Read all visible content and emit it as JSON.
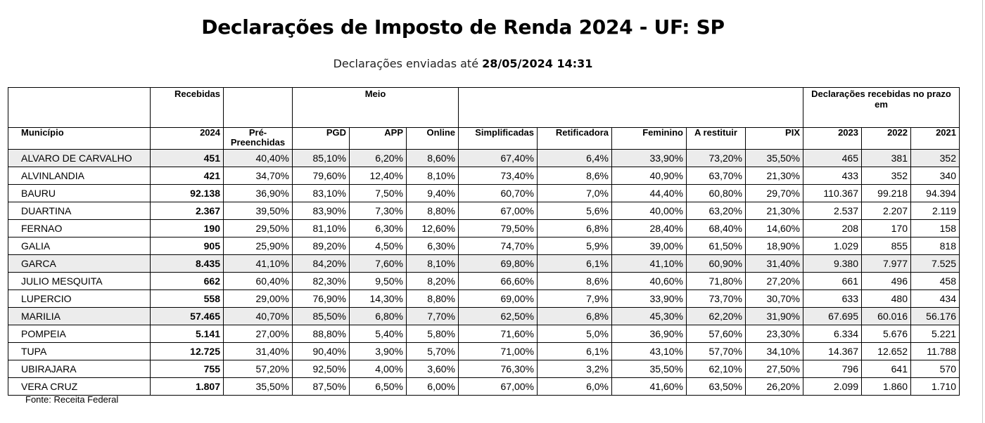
{
  "title": "Declarações de Imposto de Renda 2024 - UF: SP",
  "subtitle": {
    "prefix": "Declarações enviadas até",
    "datetime": "28/05/2024 14:31"
  },
  "group_headers": {
    "recebidas": "Recebidas",
    "meio": "Meio",
    "prazo": "Declarações recebidas no prazo em"
  },
  "columns": [
    "Município",
    "2024",
    "Pré-Preenchidas",
    "PGD",
    "APP",
    "Online",
    "Simplificadas",
    "Retificadora",
    "Feminino",
    "A restituir",
    "PIX",
    "2023",
    "2022",
    "2021"
  ],
  "rows": [
    [
      "ALVARO DE CARVALHO",
      "451",
      "40,40%",
      "85,10%",
      "6,20%",
      "8,60%",
      "67,40%",
      "6,4%",
      "33,90%",
      "73,20%",
      "35,50%",
      "465",
      "381",
      "352"
    ],
    [
      "ALVINLANDIA",
      "421",
      "34,70%",
      "79,60%",
      "12,40%",
      "8,10%",
      "73,40%",
      "8,6%",
      "40,90%",
      "63,70%",
      "21,30%",
      "433",
      "352",
      "340"
    ],
    [
      "BAURU",
      "92.138",
      "36,90%",
      "83,10%",
      "7,50%",
      "9,40%",
      "60,70%",
      "7,0%",
      "44,40%",
      "60,80%",
      "29,70%",
      "110.367",
      "99.218",
      "94.394"
    ],
    [
      "DUARTINA",
      "2.367",
      "39,50%",
      "83,90%",
      "7,30%",
      "8,80%",
      "67,00%",
      "5,6%",
      "40,00%",
      "63,20%",
      "21,30%",
      "2.537",
      "2.207",
      "2.119"
    ],
    [
      "FERNAO",
      "190",
      "29,50%",
      "81,10%",
      "6,30%",
      "12,60%",
      "79,50%",
      "6,8%",
      "28,40%",
      "68,40%",
      "14,60%",
      "208",
      "170",
      "158"
    ],
    [
      "GALIA",
      "905",
      "25,90%",
      "89,20%",
      "4,50%",
      "6,30%",
      "74,70%",
      "5,9%",
      "39,00%",
      "61,50%",
      "18,90%",
      "1.029",
      "855",
      "818"
    ],
    [
      "GARCA",
      "8.435",
      "41,10%",
      "84,20%",
      "7,60%",
      "8,10%",
      "69,80%",
      "6,1%",
      "41,10%",
      "60,90%",
      "31,40%",
      "9.380",
      "7.977",
      "7.525"
    ],
    [
      "JULIO MESQUITA",
      "662",
      "60,40%",
      "82,30%",
      "9,50%",
      "8,20%",
      "66,60%",
      "8,6%",
      "40,60%",
      "71,80%",
      "27,20%",
      "661",
      "496",
      "458"
    ],
    [
      "LUPERCIO",
      "558",
      "29,00%",
      "76,90%",
      "14,30%",
      "8,80%",
      "69,00%",
      "7,9%",
      "33,90%",
      "73,70%",
      "30,70%",
      "633",
      "480",
      "434"
    ],
    [
      "MARILIA",
      "57.465",
      "40,70%",
      "85,50%",
      "6,80%",
      "7,70%",
      "62,50%",
      "6,8%",
      "45,30%",
      "62,20%",
      "31,90%",
      "67.695",
      "60.016",
      "56.176"
    ],
    [
      "POMPEIA",
      "5.141",
      "27,00%",
      "88,80%",
      "5,40%",
      "5,80%",
      "71,60%",
      "5,0%",
      "36,90%",
      "57,60%",
      "23,30%",
      "6.334",
      "5.676",
      "5.221"
    ],
    [
      "TUPA",
      "12.725",
      "31,40%",
      "90,40%",
      "3,90%",
      "5,70%",
      "71,00%",
      "6,1%",
      "43,10%",
      "57,70%",
      "34,10%",
      "14.367",
      "12.652",
      "11.788"
    ],
    [
      "UBIRAJARA",
      "755",
      "57,20%",
      "92,50%",
      "4,00%",
      "3,60%",
      "76,30%",
      "3,2%",
      "35,50%",
      "62,10%",
      "27,50%",
      "796",
      "641",
      "570"
    ],
    [
      "VERA CRUZ",
      "1.807",
      "35,50%",
      "87,50%",
      "6,50%",
      "6,00%",
      "67,00%",
      "6,0%",
      "41,60%",
      "63,50%",
      "26,20%",
      "2.099",
      "1.860",
      "1.710"
    ]
  ],
  "shaded_rows": [
    0,
    6,
    9
  ],
  "footer": "Fonte: Receita Federal"
}
